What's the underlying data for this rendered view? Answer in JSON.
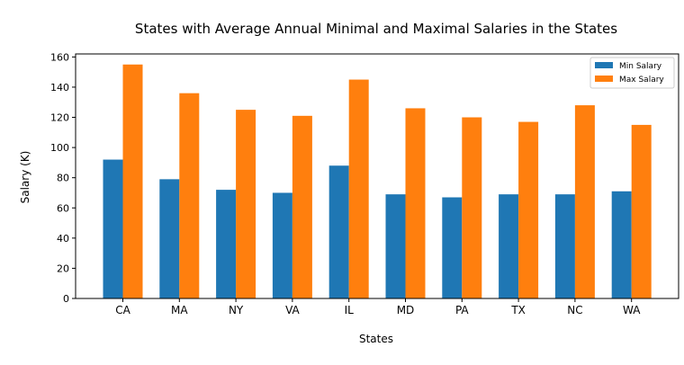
{
  "chart_data": {
    "type": "bar",
    "title": "States with Average Annual Minimal and Maximal Salaries in the States",
    "xlabel": "States",
    "ylabel": "Salary (K)",
    "categories": [
      "CA",
      "MA",
      "NY",
      "VA",
      "IL",
      "MD",
      "PA",
      "TX",
      "NC",
      "WA"
    ],
    "series": [
      {
        "name": "Min Salary",
        "color": "#1f77b4",
        "values": [
          92,
          79,
          72,
          70,
          88,
          69,
          67,
          69,
          69,
          71
        ]
      },
      {
        "name": "Max Salary",
        "color": "#ff7f0e",
        "values": [
          155,
          136,
          125,
          121,
          145,
          126,
          120,
          117,
          128,
          115
        ]
      }
    ],
    "ylim": [
      0,
      162
    ],
    "yticks": [
      0,
      20,
      40,
      60,
      80,
      100,
      120,
      140,
      160
    ],
    "grid": false,
    "legend_position": "top-right"
  }
}
